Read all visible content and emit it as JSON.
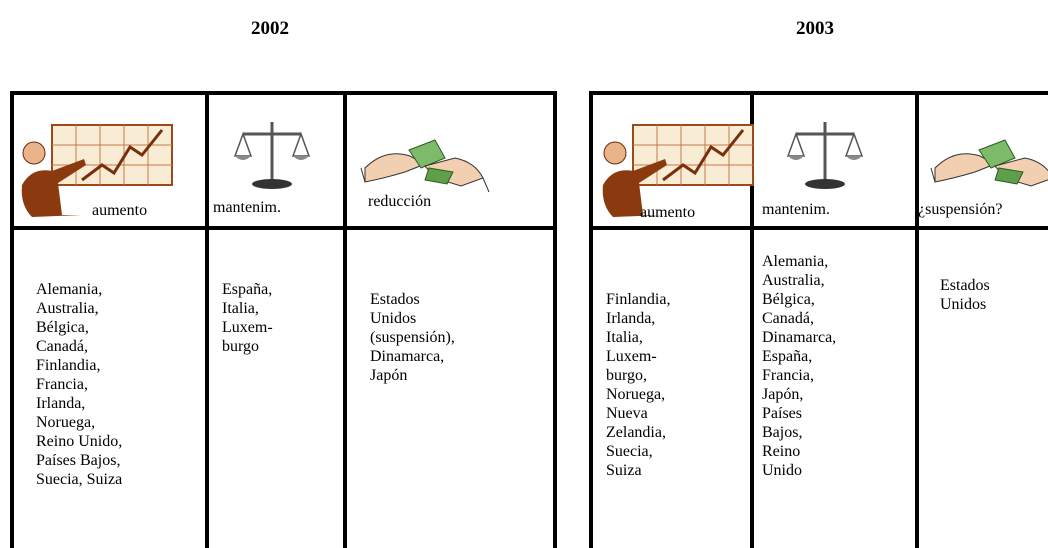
{
  "titles": [
    "2002",
    "2003"
  ],
  "tables": [
    {
      "headers": [
        "aumento",
        "mantenim.",
        "reducción"
      ],
      "cells": [
        [
          "Alemania,",
          "Australia,",
          "Bélgica,",
          "Canadá,",
          "Finlandia,",
          "Francia,",
          "Irlanda,",
          "Noruega,",
          "Reino Unido,",
          "Países Bajos,",
          "Suecia, Suiza"
        ],
        [
          "España,",
          "Italia,",
          "Luxem-",
          "burgo"
        ],
        [
          "Estados",
          "Unidos",
          "(suspensión),",
          "Dinamarca,",
          "Japón"
        ]
      ]
    },
    {
      "headers": [
        "aumento",
        "mantenim.",
        "¿suspensión?"
      ],
      "cells": [
        [
          "Finlandia,",
          "Irlanda,",
          "Italia,",
          "Luxem-",
          "burgo,",
          "Noruega,",
          "Nueva",
          "Zelandia,",
          "Suecia,",
          "Suiza"
        ],
        [
          "Alemania,",
          "Australia,",
          "Bélgica,",
          "Canadá,",
          "Dinamarca,",
          "España,",
          "Francia,",
          "Japón,",
          "Países",
          "Bajos,",
          "Reino",
          "Unido"
        ],
        [
          "Estados",
          "Unidos"
        ]
      ]
    }
  ]
}
